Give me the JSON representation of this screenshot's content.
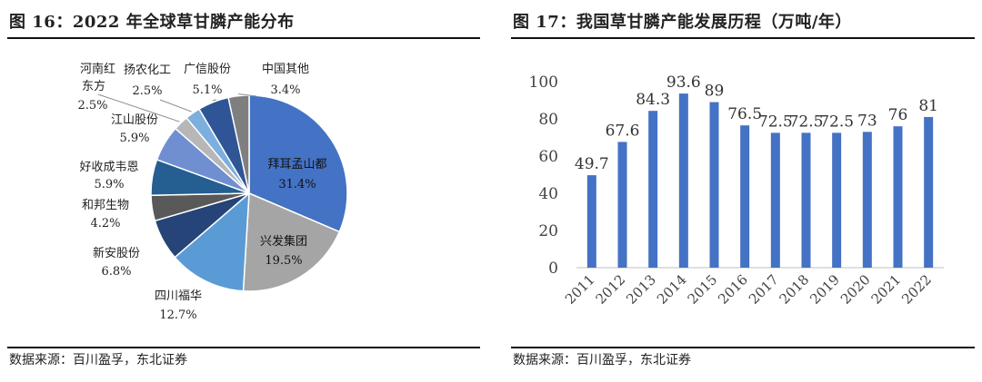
{
  "left": {
    "title": "图 16：2022 年全球草甘膦产能分布",
    "source": "数据来源：百川盈孚，东北证券"
  },
  "right": {
    "title": "图 17：我国草甘膦产能发展历程（万吨/年）",
    "source": "数据来源：百川盈孚，东北证券"
  },
  "chart_data": [
    {
      "type": "pie",
      "title": "2022 年全球草甘膦产能分布",
      "unit": "%",
      "slices": [
        {
          "name": "拜耳孟山都",
          "value": 31.4,
          "label": "31.4%",
          "color": "#4472c4"
        },
        {
          "name": "兴发集团",
          "value": 19.5,
          "label": "19.5%",
          "color": "#a5a5a5"
        },
        {
          "name": "四川福华",
          "value": 12.7,
          "label": "12.7%",
          "color": "#5b9bd5"
        },
        {
          "name": "新安股份",
          "value": 6.8,
          "label": "6.8%",
          "color": "#264478"
        },
        {
          "name": "和邦生物",
          "value": 4.2,
          "label": "4.2%",
          "color": "#595959"
        },
        {
          "name": "好收成韦恩",
          "value": 5.9,
          "label": "5.9%",
          "color": "#255e91"
        },
        {
          "name": "江山股份",
          "value": 5.9,
          "label": "5.9%",
          "color": "#6f8fd1"
        },
        {
          "name": "河南红东方",
          "value": 2.5,
          "label": "2.5%",
          "color": "#b7b7b7"
        },
        {
          "name": "扬农化工",
          "value": 2.5,
          "label": "2.5%",
          "color": "#7cafdd"
        },
        {
          "name": "广信股份",
          "value": 5.1,
          "label": "5.1%",
          "color": "#2f5597"
        },
        {
          "name": "中国其他",
          "value": 3.4,
          "label": "3.4%",
          "color": "#7f7f7f"
        }
      ]
    },
    {
      "type": "bar",
      "title": "我国草甘膦产能发展历程（万吨/年）",
      "categories": [
        "2011",
        "2012",
        "2013",
        "2014",
        "2015",
        "2016",
        "2017",
        "2018",
        "2019",
        "2020",
        "2021",
        "2022"
      ],
      "values": [
        49.7,
        67.6,
        84.3,
        93.6,
        89,
        76.5,
        72.5,
        72.5,
        72.5,
        73,
        76,
        81
      ],
      "value_labels": [
        "49.7",
        "67.6",
        "84.3",
        "93.6",
        "89",
        "76.5",
        "72.5",
        "72.5",
        "72.5",
        "73",
        "76",
        "81"
      ],
      "ylim": [
        0,
        100
      ],
      "yticks": [
        0,
        20,
        40,
        60,
        80,
        100
      ],
      "ytick_labels": [
        "0",
        "20",
        "40",
        "60",
        "80",
        "100"
      ],
      "grid": false,
      "bar_color": "#4472c4"
    }
  ]
}
